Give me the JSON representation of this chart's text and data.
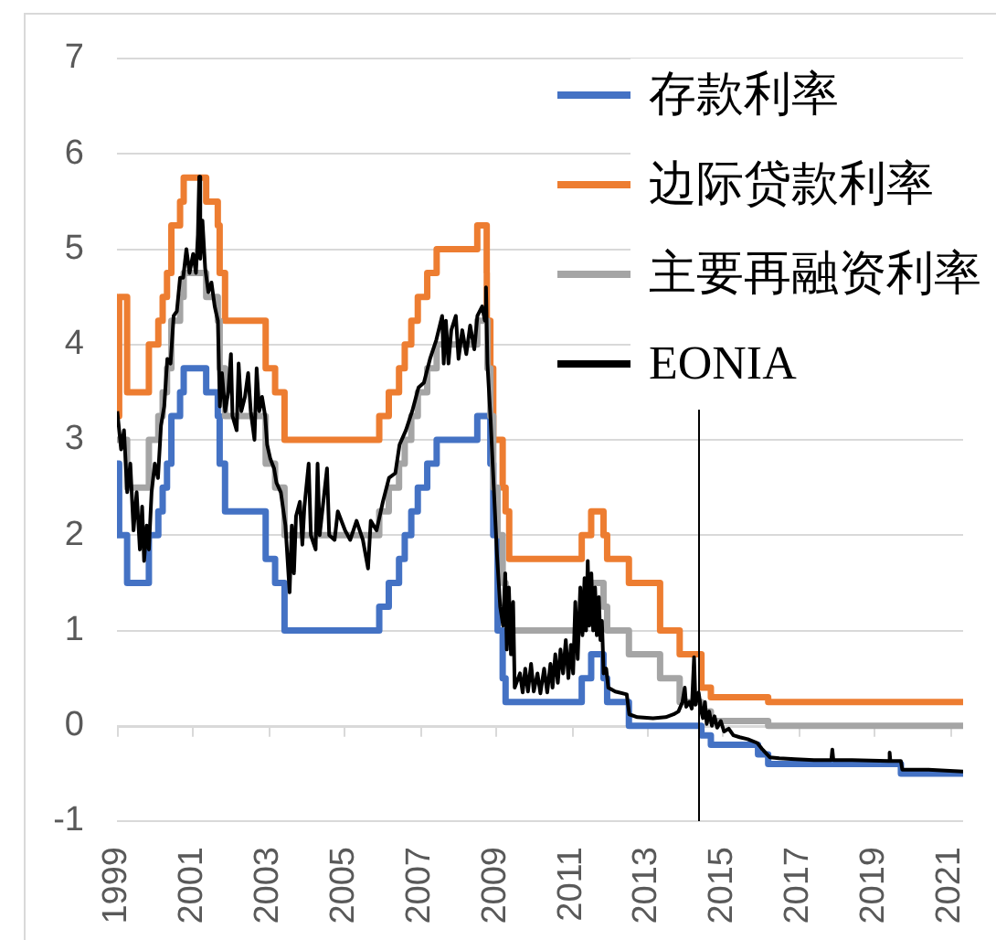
{
  "chart_data": {
    "type": "line",
    "xlim": [
      "1999-01-01",
      "2021-05-10"
    ],
    "xticks": [
      "1999",
      "2001",
      "2003",
      "2005",
      "2007",
      "2009",
      "2011",
      "2013",
      "2015",
      "2017",
      "2019",
      "2021"
    ],
    "ylim": [
      -1,
      7
    ],
    "yticks": [
      -1,
      0,
      1,
      2,
      3,
      4,
      5,
      6,
      7
    ],
    "grid": "y",
    "legend": "top right",
    "ref_lines": [
      {
        "axis": "x",
        "value": "2014-05-10",
        "color": "#000000"
      }
    ],
    "series": [
      {
        "name": "存款利率",
        "type": "step",
        "color": "#4472c4",
        "x": [
          "1999-01-01",
          "1999-01-04",
          "1999-01-22",
          "1999-04-09",
          "1999-11-05",
          "2000-02-04",
          "2000-03-17",
          "2000-04-28",
          "2000-06-09",
          "2000-09-01",
          "2000-10-06",
          "2001-05-11",
          "2001-08-31",
          "2001-09-18",
          "2001-11-09",
          "2002-12-06",
          "2003-03-07",
          "2003-06-06",
          "2005-12-06",
          "2006-03-08",
          "2006-06-15",
          "2006-08-09",
          "2006-10-11",
          "2006-12-13",
          "2007-03-14",
          "2007-06-13",
          "2008-07-09",
          "2008-11-12",
          "2008-12-10",
          "2009-01-21",
          "2009-03-11",
          "2009-04-08",
          "2011-04-13",
          "2011-07-13",
          "2011-11-09",
          "2011-12-14",
          "2012-07-11",
          "2014-06-11",
          "2014-09-10",
          "2015-12-09",
          "2016-03-16",
          "2019-09-18",
          "2021-05-10"
        ],
        "values": [
          2.0,
          2.75,
          2.0,
          1.5,
          2.0,
          2.25,
          2.5,
          2.75,
          3.25,
          3.5,
          3.75,
          3.5,
          3.25,
          2.75,
          2.25,
          1.75,
          1.5,
          1.0,
          1.25,
          1.5,
          1.75,
          2.0,
          2.25,
          2.5,
          2.75,
          3.0,
          3.25,
          2.75,
          2.0,
          1.0,
          0.5,
          0.25,
          0.5,
          0.75,
          0.5,
          0.25,
          0.0,
          -0.1,
          -0.2,
          -0.3,
          -0.4,
          -0.5,
          -0.5
        ]
      },
      {
        "name": "边际贷款利率",
        "type": "step",
        "color": "#ed7d31",
        "x": [
          "1999-01-01",
          "1999-01-04",
          "1999-01-22",
          "1999-04-09",
          "1999-11-05",
          "2000-02-04",
          "2000-03-17",
          "2000-04-28",
          "2000-06-09",
          "2000-09-01",
          "2000-10-06",
          "2001-05-11",
          "2001-08-31",
          "2001-09-18",
          "2001-11-09",
          "2002-12-06",
          "2003-03-07",
          "2003-06-06",
          "2005-12-06",
          "2006-03-08",
          "2006-06-15",
          "2006-08-09",
          "2006-10-11",
          "2006-12-13",
          "2007-03-14",
          "2007-06-13",
          "2008-07-09",
          "2008-10-08",
          "2008-10-09",
          "2008-11-12",
          "2008-12-10",
          "2009-03-11",
          "2009-04-08",
          "2009-05-13",
          "2011-04-13",
          "2011-07-13",
          "2011-11-09",
          "2011-12-14",
          "2012-07-11",
          "2013-05-08",
          "2013-11-13",
          "2014-06-11",
          "2014-09-10",
          "2016-03-16",
          "2021-05-10"
        ],
        "values": [
          4.5,
          3.25,
          4.5,
          3.5,
          4.0,
          4.25,
          4.5,
          4.75,
          5.25,
          5.5,
          5.75,
          5.5,
          5.25,
          4.75,
          4.25,
          3.75,
          3.5,
          3.0,
          3.25,
          3.5,
          3.75,
          4.0,
          4.25,
          4.5,
          4.75,
          5.0,
          5.25,
          4.75,
          4.25,
          3.75,
          3.0,
          2.5,
          2.25,
          1.75,
          2.0,
          2.25,
          2.0,
          1.75,
          1.5,
          1.0,
          0.75,
          0.4,
          0.3,
          0.25,
          0.25
        ]
      },
      {
        "name": "主要再融资利率",
        "type": "step",
        "color": "#a5a5a5",
        "x": [
          "1999-01-01",
          "1999-04-09",
          "1999-11-05",
          "2000-02-04",
          "2000-03-17",
          "2000-04-28",
          "2000-06-09",
          "2000-09-01",
          "2000-10-06",
          "2001-05-11",
          "2001-08-31",
          "2001-09-18",
          "2001-11-09",
          "2002-12-06",
          "2003-03-07",
          "2003-06-06",
          "2005-12-06",
          "2006-03-08",
          "2006-06-15",
          "2006-08-09",
          "2006-10-11",
          "2006-12-13",
          "2007-03-14",
          "2007-06-13",
          "2008-07-09",
          "2008-10-15",
          "2008-11-12",
          "2008-12-10",
          "2009-01-21",
          "2009-03-11",
          "2009-04-08",
          "2009-05-13",
          "2011-04-13",
          "2011-07-13",
          "2011-11-09",
          "2011-12-14",
          "2012-07-11",
          "2013-05-08",
          "2013-11-13",
          "2014-06-11",
          "2014-09-10",
          "2016-03-16",
          "2021-05-10"
        ],
        "values": [
          3.0,
          2.5,
          3.0,
          3.25,
          3.5,
          3.75,
          4.25,
          4.5,
          4.75,
          4.5,
          4.25,
          3.75,
          3.25,
          2.75,
          2.5,
          2.0,
          2.25,
          2.5,
          2.75,
          3.0,
          3.25,
          3.5,
          3.75,
          4.0,
          4.25,
          3.75,
          3.25,
          2.5,
          2.0,
          1.5,
          1.25,
          1.0,
          1.25,
          1.5,
          1.25,
          1.0,
          0.75,
          0.5,
          0.25,
          0.15,
          0.05,
          0.0,
          0.0
        ]
      },
      {
        "name": "EONIA",
        "type": "line",
        "color": "#000000",
        "x": [
          "1999-01-04",
          "1999-02-10",
          "1999-03-10",
          "1999-04-10",
          "1999-05-10",
          "1999-06-10",
          "1999-07-10",
          "1999-08-10",
          "1999-09-01",
          "1999-09-20",
          "1999-10-15",
          "1999-11-05",
          "1999-12-01",
          "2000-01-01",
          "2000-02-01",
          "2000-03-01",
          "2000-04-01",
          "2000-05-01",
          "2000-06-01",
          "2000-07-01",
          "2000-08-01",
          "2000-09-01",
          "2000-10-01",
          "2000-11-01",
          "2000-12-01",
          "2001-01-05",
          "2001-02-01",
          "2001-02-20",
          "2001-03-05",
          "2001-03-15",
          "2001-04-05",
          "2001-05-01",
          "2001-06-01",
          "2001-07-01",
          "2001-08-01",
          "2001-09-01",
          "2001-09-20",
          "2001-10-10",
          "2001-11-10",
          "2001-12-10",
          "2002-01-05",
          "2002-01-20",
          "2002-03-01",
          "2002-03-20",
          "2002-04-15",
          "2002-05-20",
          "2002-06-20",
          "2002-07-15",
          "2002-08-20",
          "2002-09-10",
          "2002-10-05",
          "2002-11-01",
          "2002-12-01",
          "2002-12-20",
          "2003-01-20",
          "2003-02-25",
          "2003-03-20",
          "2003-05-01",
          "2003-06-15",
          "2003-07-25",
          "2003-08-15",
          "2003-09-05",
          "2003-09-25",
          "2003-11-01",
          "2003-11-25",
          "2003-12-15",
          "2004-01-25",
          "2004-02-15",
          "2004-04-01",
          "2004-04-20",
          "2004-05-10",
          "2004-07-20",
          "2004-08-10",
          "2004-10-01",
          "2004-11-01",
          "2005-01-10",
          "2005-03-01",
          "2005-05-01",
          "2005-07-01",
          "2005-08-20",
          "2005-09-15",
          "2005-11-10",
          "2006-01-10",
          "2006-03-10",
          "2006-05-10",
          "2006-06-20",
          "2006-08-20",
          "2006-10-20",
          "2006-12-20",
          "2007-02-10",
          "2007-04-10",
          "2007-06-10",
          "2007-08-05",
          "2007-08-20",
          "2007-09-10",
          "2007-10-05",
          "2007-11-01",
          "2007-12-15",
          "2008-01-10",
          "2008-02-15",
          "2008-03-25",
          "2008-05-01",
          "2008-06-10",
          "2008-07-10",
          "2008-08-25",
          "2008-09-20",
          "2008-10-01",
          "2008-10-15",
          "2008-11-15",
          "2008-12-15",
          "2009-01-15",
          "2009-02-15",
          "2009-03-15",
          "2009-04-05",
          "2009-04-20",
          "2009-05-10",
          "2009-05-30",
          "2009-06-20",
          "2009-07-05",
          "2009-08-25",
          "2009-09-20",
          "2009-10-15",
          "2009-11-10",
          "2009-12-10",
          "2010-01-05",
          "2010-02-10",
          "2010-03-10",
          "2010-04-15",
          "2010-05-15",
          "2010-06-15",
          "2010-07-05",
          "2010-08-01",
          "2010-08-25",
          "2010-09-20",
          "2010-10-15",
          "2010-11-10",
          "2010-12-05",
          "2010-12-30",
          "2011-01-20",
          "2011-02-10",
          "2011-03-05",
          "2011-03-30",
          "2011-04-20",
          "2011-05-10",
          "2011-05-25",
          "2011-06-10",
          "2011-06-25",
          "2011-07-15",
          "2011-08-01",
          "2011-08-20",
          "2011-09-05",
          "2011-09-25",
          "2011-10-10",
          "2011-10-25",
          "2011-11-10",
          "2011-12-05",
          "2011-12-25",
          "2012-03-01",
          "2012-06-20",
          "2012-07-15",
          "2012-10-01",
          "2013-03-01",
          "2013-07-01",
          "2013-09-15",
          "2013-11-01",
          "2013-12-10",
          "2014-01-01",
          "2014-01-15",
          "2014-02-15",
          "2014-03-10",
          "2014-04-01",
          "2014-04-15",
          "2014-05-15",
          "2014-06-10",
          "2014-06-25",
          "2014-07-15",
          "2014-08-01",
          "2014-08-25",
          "2014-09-20",
          "2014-10-15",
          "2014-11-10",
          "2014-12-15",
          "2015-01-15",
          "2015-03-01",
          "2015-04-15",
          "2015-06-15",
          "2015-09-01",
          "2015-12-01",
          "2016-01-15",
          "2016-04-01",
          "2016-07-01",
          "2016-12-01",
          "2017-06-01",
          "2017-11-15",
          "2017-11-25",
          "2017-12-05",
          "2018-06-01",
          "2019-05-25",
          "2019-06-01",
          "2019-06-08",
          "2019-09-18",
          "2019-10-01",
          "2020-06-01",
          "2021-05-10"
        ],
        "values": [
          3.3,
          2.9,
          3.1,
          2.45,
          2.75,
          2.05,
          2.45,
          1.85,
          2.3,
          1.73,
          2.1,
          1.85,
          2.45,
          2.75,
          2.6,
          3.15,
          3.35,
          3.85,
          3.8,
          4.3,
          4.35,
          4.7,
          4.7,
          5.0,
          4.75,
          4.95,
          4.75,
          5.15,
          5.76,
          4.9,
          5.3,
          4.8,
          4.55,
          4.65,
          4.4,
          4.25,
          3.35,
          3.7,
          3.3,
          3.5,
          3.9,
          3.25,
          3.1,
          3.8,
          3.3,
          3.45,
          3.7,
          3.3,
          3.0,
          3.75,
          3.3,
          3.45,
          3.25,
          2.95,
          2.8,
          2.7,
          2.55,
          2.45,
          2.1,
          1.4,
          2.1,
          1.6,
          2.2,
          2.35,
          1.9,
          2.3,
          2.75,
          2.0,
          1.85,
          2.75,
          2.0,
          2.7,
          2.0,
          1.95,
          2.25,
          2.05,
          1.95,
          2.15,
          1.95,
          1.65,
          2.15,
          2.05,
          2.35,
          2.6,
          2.65,
          2.95,
          3.1,
          3.3,
          3.55,
          3.6,
          3.85,
          4.05,
          4.3,
          3.8,
          4.25,
          3.8,
          4.15,
          4.3,
          3.85,
          4.15,
          3.9,
          4.2,
          3.95,
          4.3,
          4.4,
          4.25,
          4.6,
          3.8,
          3.2,
          2.5,
          1.8,
          1.25,
          1.05,
          1.6,
          0.8,
          1.45,
          0.75,
          1.3,
          0.4,
          0.55,
          0.35,
          0.6,
          0.36,
          0.65,
          0.36,
          0.55,
          0.34,
          0.6,
          0.35,
          0.65,
          0.4,
          0.75,
          0.45,
          0.8,
          0.55,
          0.9,
          0.5,
          0.85,
          0.55,
          1.3,
          0.7,
          1.45,
          0.95,
          1.55,
          1.0,
          1.73,
          1.05,
          1.6,
          1.0,
          1.45,
          0.95,
          1.35,
          0.9,
          1.1,
          0.55,
          0.6,
          0.4,
          0.36,
          0.33,
          0.12,
          0.09,
          0.08,
          0.09,
          0.12,
          0.15,
          0.25,
          0.4,
          0.2,
          0.25,
          0.18,
          0.72,
          0.22,
          0.35,
          0.15,
          0.08,
          0.25,
          0.02,
          0.15,
          0.0,
          0.1,
          -0.02,
          0.05,
          -0.06,
          -0.03,
          -0.1,
          -0.12,
          -0.14,
          -0.18,
          -0.24,
          -0.33,
          -0.34,
          -0.35,
          -0.36,
          -0.36,
          -0.25,
          -0.36,
          -0.36,
          -0.37,
          -0.28,
          -0.37,
          -0.37,
          -0.46,
          -0.46,
          -0.48
        ]
      }
    ]
  }
}
